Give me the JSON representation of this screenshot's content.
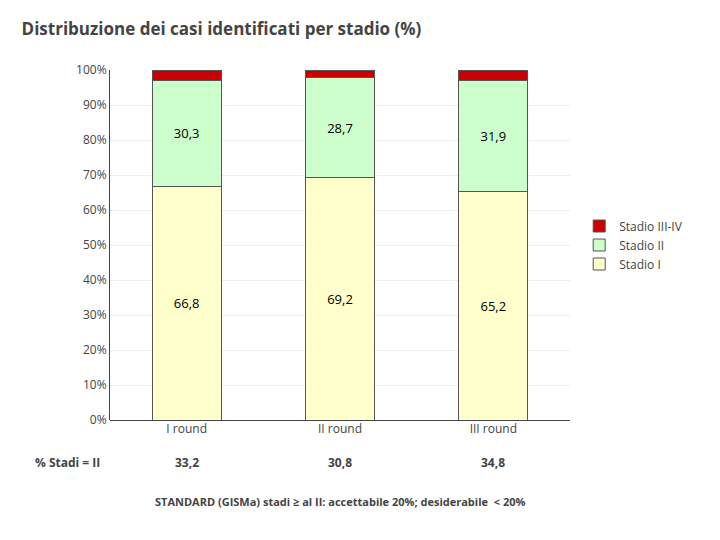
{
  "chart_data": {
    "type": "bar",
    "stacked": true,
    "title": "Distribuzione dei casi identificati per stadio (%)",
    "categories": [
      "I round",
      "II round",
      "III round"
    ],
    "series": [
      {
        "name": "Stadio I",
        "color": "#FFFFCC",
        "values": [
          66.8,
          69.2,
          65.2
        ],
        "data_labels": true,
        "value_labels": [
          "66,8",
          "69,2",
          "65,2"
        ]
      },
      {
        "name": "Stadio II",
        "color": "#CCFFCC",
        "values": [
          30.3,
          28.7,
          31.9
        ],
        "data_labels": true,
        "value_labels": [
          "30,3",
          "28,7",
          "31,9"
        ]
      },
      {
        "name": "Stadio III-IV",
        "color": "#CC0000",
        "values": [
          2.9,
          2.1,
          2.9
        ],
        "data_labels": false
      }
    ],
    "ylim": [
      0,
      100
    ],
    "yticks": [
      {
        "value": 0,
        "label": "0%"
      },
      {
        "value": 10,
        "label": "10%"
      },
      {
        "value": 20,
        "label": "20%"
      },
      {
        "value": 30,
        "label": "30%"
      },
      {
        "value": 40,
        "label": "40%"
      },
      {
        "value": 50,
        "label": "50%"
      },
      {
        "value": 60,
        "label": "60%"
      },
      {
        "value": 70,
        "label": "70%"
      },
      {
        "value": 80,
        "label": "80%"
      },
      {
        "value": 90,
        "label": "90%"
      },
      {
        "value": 100,
        "label": "100%"
      }
    ],
    "grid": true,
    "legend": "right",
    "annotations": [
      {
        "text": "% Stadi = II",
        "labels": [
          "33,2",
          "30,8",
          "34,8"
        ]
      },
      {
        "text": "STANDARD (GISMa) stadi ≥ al II: accettabile 20%; desiderabile  < 20%"
      }
    ]
  }
}
